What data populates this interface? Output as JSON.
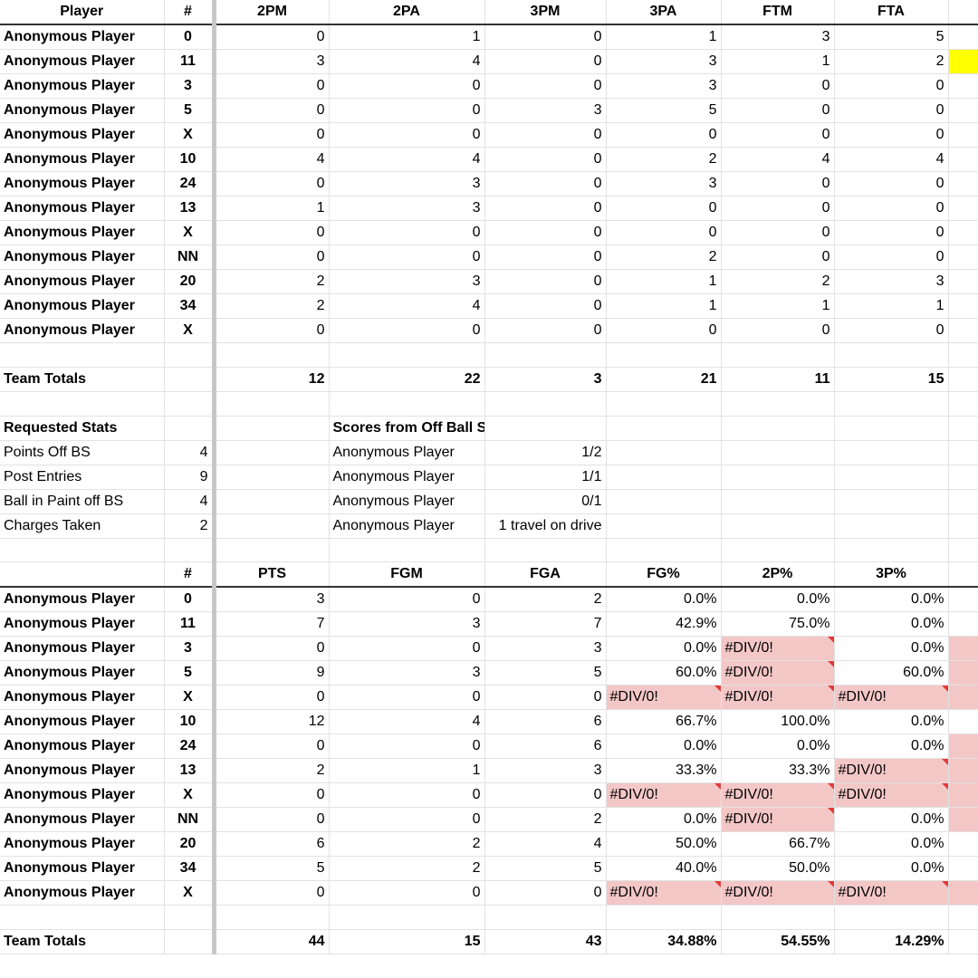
{
  "colors": {
    "error_fill": "#f4c7c7",
    "highlight": "#ffff00",
    "error_marker": "#e53935"
  },
  "top_table": {
    "headers": [
      "Player",
      "#",
      "2PM",
      "2PA",
      "3PM",
      "3PA",
      "FTM",
      "FTA"
    ],
    "rows": [
      {
        "player": "Anonymous Player",
        "num": "0",
        "pm2": "0",
        "pa2": "1",
        "pm3": "0",
        "pa3": "1",
        "ftm": "3",
        "fta": "5"
      },
      {
        "player": "Anonymous Player",
        "num": "11",
        "pm2": "3",
        "pa2": "4",
        "pm3": "0",
        "pa3": "3",
        "ftm": "1",
        "fta": "2"
      },
      {
        "player": "Anonymous Player",
        "num": "3",
        "pm2": "0",
        "pa2": "0",
        "pm3": "0",
        "pa3": "3",
        "ftm": "0",
        "fta": "0"
      },
      {
        "player": "Anonymous Player",
        "num": "5",
        "pm2": "0",
        "pa2": "0",
        "pm3": "3",
        "pa3": "5",
        "ftm": "0",
        "fta": "0"
      },
      {
        "player": "Anonymous Player",
        "num": "X",
        "pm2": "0",
        "pa2": "0",
        "pm3": "0",
        "pa3": "0",
        "ftm": "0",
        "fta": "0"
      },
      {
        "player": "Anonymous Player",
        "num": "10",
        "pm2": "4",
        "pa2": "4",
        "pm3": "0",
        "pa3": "2",
        "ftm": "4",
        "fta": "4"
      },
      {
        "player": "Anonymous Player",
        "num": "24",
        "pm2": "0",
        "pa2": "3",
        "pm3": "0",
        "pa3": "3",
        "ftm": "0",
        "fta": "0"
      },
      {
        "player": "Anonymous Player",
        "num": "13",
        "pm2": "1",
        "pa2": "3",
        "pm3": "0",
        "pa3": "0",
        "ftm": "0",
        "fta": "0"
      },
      {
        "player": "Anonymous Player",
        "num": "X",
        "pm2": "0",
        "pa2": "0",
        "pm3": "0",
        "pa3": "0",
        "ftm": "0",
        "fta": "0"
      },
      {
        "player": "Anonymous Player",
        "num": "NN",
        "pm2": "0",
        "pa2": "0",
        "pm3": "0",
        "pa3": "2",
        "ftm": "0",
        "fta": "0"
      },
      {
        "player": "Anonymous Player",
        "num": "20",
        "pm2": "2",
        "pa2": "3",
        "pm3": "0",
        "pa3": "1",
        "ftm": "2",
        "fta": "3"
      },
      {
        "player": "Anonymous Player",
        "num": "34",
        "pm2": "2",
        "pa2": "4",
        "pm3": "0",
        "pa3": "1",
        "ftm": "1",
        "fta": "1"
      },
      {
        "player": "Anonymous Player",
        "num": "X",
        "pm2": "0",
        "pa2": "0",
        "pm3": "0",
        "pa3": "0",
        "ftm": "0",
        "fta": "0"
      }
    ],
    "totals": {
      "label": "Team Totals",
      "pm2": "12",
      "pa2": "22",
      "pm3": "3",
      "pa3": "21",
      "ftm": "11",
      "fta": "15"
    }
  },
  "requested": {
    "title": "Requested Stats",
    "items": [
      {
        "label": "Points Off BS",
        "value": "4"
      },
      {
        "label": "Post Entries",
        "value": "9"
      },
      {
        "label": "Ball in Paint off BS",
        "value": "4"
      },
      {
        "label": "Charges Taken",
        "value": "2"
      }
    ]
  },
  "screens": {
    "title": "Scores from Off Ball Screens",
    "items": [
      {
        "player": "Anonymous Player",
        "value": "1/2"
      },
      {
        "player": "Anonymous Player",
        "value": "1/1"
      },
      {
        "player": "Anonymous Player",
        "value": "0/1"
      },
      {
        "player": "Anonymous Player",
        "value": "1 travel on drive"
      }
    ]
  },
  "bottom_table": {
    "headers": [
      "#",
      "PTS",
      "FGM",
      "FGA",
      "FG%",
      "2P%",
      "3P%"
    ],
    "rows": [
      {
        "player": "Anonymous Player",
        "num": "0",
        "pts": "3",
        "fgm": "0",
        "fga": "2",
        "fg": "0.0%",
        "p2": "0.0%",
        "p3": "0.0%"
      },
      {
        "player": "Anonymous Player",
        "num": "11",
        "pts": "7",
        "fgm": "3",
        "fga": "7",
        "fg": "42.9%",
        "p2": "75.0%",
        "p3": "0.0%"
      },
      {
        "player": "Anonymous Player",
        "num": "3",
        "pts": "0",
        "fgm": "0",
        "fga": "3",
        "fg": "0.0%",
        "p2": "#DIV/0!",
        "p3": "0.0%"
      },
      {
        "player": "Anonymous Player",
        "num": "5",
        "pts": "9",
        "fgm": "3",
        "fga": "5",
        "fg": "60.0%",
        "p2": "#DIV/0!",
        "p3": "60.0%"
      },
      {
        "player": "Anonymous Player",
        "num": "X",
        "pts": "0",
        "fgm": "0",
        "fga": "0",
        "fg": "#DIV/0!",
        "p2": "#DIV/0!",
        "p3": "#DIV/0!"
      },
      {
        "player": "Anonymous Player",
        "num": "10",
        "pts": "12",
        "fgm": "4",
        "fga": "6",
        "fg": "66.7%",
        "p2": "100.0%",
        "p3": "0.0%"
      },
      {
        "player": "Anonymous Player",
        "num": "24",
        "pts": "0",
        "fgm": "0",
        "fga": "6",
        "fg": "0.0%",
        "p2": "0.0%",
        "p3": "0.0%"
      },
      {
        "player": "Anonymous Player",
        "num": "13",
        "pts": "2",
        "fgm": "1",
        "fga": "3",
        "fg": "33.3%",
        "p2": "33.3%",
        "p3": "#DIV/0!"
      },
      {
        "player": "Anonymous Player",
        "num": "X",
        "pts": "0",
        "fgm": "0",
        "fga": "0",
        "fg": "#DIV/0!",
        "p2": "#DIV/0!",
        "p3": "#DIV/0!"
      },
      {
        "player": "Anonymous Player",
        "num": "NN",
        "pts": "0",
        "fgm": "0",
        "fga": "2",
        "fg": "0.0%",
        "p2": "#DIV/0!",
        "p3": "0.0%"
      },
      {
        "player": "Anonymous Player",
        "num": "20",
        "pts": "6",
        "fgm": "2",
        "fga": "4",
        "fg": "50.0%",
        "p2": "66.7%",
        "p3": "0.0%"
      },
      {
        "player": "Anonymous Player",
        "num": "34",
        "pts": "5",
        "fgm": "2",
        "fga": "5",
        "fg": "40.0%",
        "p2": "50.0%",
        "p3": "0.0%"
      },
      {
        "player": "Anonymous Player",
        "num": "X",
        "pts": "0",
        "fgm": "0",
        "fga": "0",
        "fg": "#DIV/0!",
        "p2": "#DIV/0!",
        "p3": "#DIV/0!"
      }
    ],
    "pink_extra_rows": [
      2,
      3,
      4,
      6,
      7,
      8,
      9,
      12
    ],
    "totals": {
      "label": "Team Totals",
      "pts": "44",
      "fgm": "15",
      "fga": "43",
      "fg": "34.88%",
      "p2": "54.55%",
      "p3": "14.29%"
    }
  }
}
